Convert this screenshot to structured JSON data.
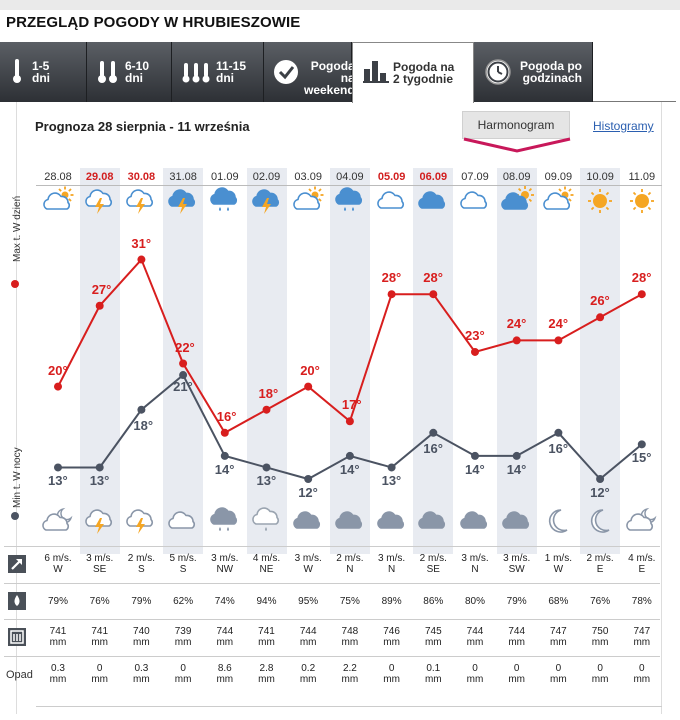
{
  "page_title": "PRZEGLĄD POGODY W HRUBIESZOWIE",
  "tabs": [
    {
      "line1": "1-5",
      "line2": "dni",
      "icon": "thermometer-icon"
    },
    {
      "line1": "6-10",
      "line2": "dni",
      "icon": "thermometer-pair-icon"
    },
    {
      "line1": "11-15",
      "line2": "dni",
      "icon": "thermometer-triple-icon"
    },
    {
      "line1": "Pogoda na",
      "line2": "weekend",
      "icon": "checkmark-icon"
    },
    {
      "line1": "Pogoda na",
      "line2": "2 tygodnie",
      "icon": "bar-chart-icon",
      "active": true
    },
    {
      "line1": "Pogoda po",
      "line2": "godzinach",
      "icon": "clock-icon"
    }
  ],
  "subtitle": "Prognoza 28 sierpnia - 11 września",
  "harmonogram_label": "Harmonogram",
  "histogramy_label": "Histogramy",
  "axis_max_label": "Max t. W dzień",
  "axis_min_label": "Min t. W nocy",
  "colors": {
    "max": "#d81e1e",
    "min": "#4b5362",
    "weekend": "#d21f1f",
    "accent": "#c8185a",
    "strip": "#e8ebf1"
  },
  "days": [
    {
      "date": "28.08",
      "weekend": false,
      "day_icon": "partly-cloudy-outline",
      "night_icon": "moon-cloud-outline",
      "max": 20,
      "min": 13,
      "wind": "6 m/s.",
      "dir": "W",
      "hum": "79%",
      "press": "741",
      "precip": "0.3"
    },
    {
      "date": "29.08",
      "weekend": true,
      "day_icon": "thunder-cloud-outline",
      "night_icon": "thunder-cloud-outline",
      "max": 27,
      "min": 13,
      "wind": "3 m/s.",
      "dir": "SE",
      "hum": "76%",
      "press": "741",
      "precip": "0"
    },
    {
      "date": "30.08",
      "weekend": true,
      "day_icon": "thunder-cloud-outline",
      "night_icon": "thunder-cloud-outline",
      "max": 31,
      "min": 18,
      "wind": "2 m/s.",
      "dir": "S",
      "hum": "79%",
      "press": "740",
      "precip": "0.3"
    },
    {
      "date": "31.08",
      "weekend": false,
      "day_icon": "thunder-cloud-filled",
      "night_icon": "cloud-outline",
      "max": 22,
      "min": 21,
      "wind": "5 m/s.",
      "dir": "S",
      "hum": "62%",
      "press": "739",
      "precip": "0"
    },
    {
      "date": "01.09",
      "weekend": false,
      "day_icon": "rain-cloud-filled",
      "night_icon": "rain-cloud-filled",
      "max": 16,
      "min": 14,
      "wind": "3 m/s.",
      "dir": "NW",
      "hum": "74%",
      "press": "744",
      "precip": "8.6"
    },
    {
      "date": "02.09",
      "weekend": false,
      "day_icon": "thunder-cloud-filled",
      "night_icon": "rain-cloud-outline",
      "max": 18,
      "min": 13,
      "wind": "4 m/s.",
      "dir": "NE",
      "hum": "94%",
      "press": "741",
      "precip": "2.8"
    },
    {
      "date": "03.09",
      "weekend": false,
      "day_icon": "partly-cloudy-outline",
      "night_icon": "cloud-filled",
      "max": 20,
      "min": 12,
      "wind": "3 m/s.",
      "dir": "W",
      "hum": "95%",
      "press": "744",
      "precip": "0.2"
    },
    {
      "date": "04.09",
      "weekend": false,
      "day_icon": "rain-cloud-filled",
      "night_icon": "cloud-filled",
      "max": 17,
      "min": 14,
      "wind": "2 m/s.",
      "dir": "N",
      "hum": "75%",
      "press": "748",
      "precip": "2.2"
    },
    {
      "date": "05.09",
      "weekend": true,
      "day_icon": "cloud-outline",
      "night_icon": "cloud-filled",
      "max": 28,
      "min": 13,
      "wind": "3 m/s.",
      "dir": "N",
      "hum": "89%",
      "press": "746",
      "precip": "0"
    },
    {
      "date": "06.09",
      "weekend": true,
      "day_icon": "cloud-filled",
      "night_icon": "cloud-filled",
      "max": 28,
      "min": 16,
      "wind": "2 m/s.",
      "dir": "SE",
      "hum": "86%",
      "press": "745",
      "precip": "0.1"
    },
    {
      "date": "07.09",
      "weekend": false,
      "day_icon": "cloud-outline",
      "night_icon": "cloud-filled",
      "max": 23,
      "min": 14,
      "wind": "3 m/s.",
      "dir": "N",
      "hum": "80%",
      "press": "744",
      "precip": "0"
    },
    {
      "date": "08.09",
      "weekend": false,
      "day_icon": "sun-cloud-filled",
      "night_icon": "cloud-filled",
      "max": 24,
      "min": 14,
      "wind": "3 m/s.",
      "dir": "SW",
      "hum": "79%",
      "press": "744",
      "precip": "0"
    },
    {
      "date": "09.09",
      "weekend": false,
      "day_icon": "partly-cloudy-outline",
      "night_icon": "crescent-moon",
      "max": 24,
      "min": 16,
      "wind": "1 m/s.",
      "dir": "W",
      "hum": "68%",
      "press": "747",
      "precip": "0"
    },
    {
      "date": "10.09",
      "weekend": false,
      "day_icon": "sun",
      "night_icon": "crescent-moon",
      "max": 26,
      "min": 12,
      "wind": "2 m/s.",
      "dir": "E",
      "hum": "76%",
      "press": "750",
      "precip": "0"
    },
    {
      "date": "11.09",
      "weekend": false,
      "day_icon": "sun",
      "night_icon": "moon-cloud-outline",
      "max": 28,
      "min": 15,
      "wind": "4 m/s.",
      "dir": "E",
      "hum": "78%",
      "press": "747",
      "precip": "0"
    }
  ],
  "precip_label": "Opad",
  "precip_unit": "mm",
  "chart_data": {
    "type": "line",
    "categories": [
      "28.08",
      "29.08",
      "30.08",
      "31.08",
      "01.09",
      "02.09",
      "03.09",
      "04.09",
      "05.09",
      "06.09",
      "07.09",
      "08.09",
      "09.09",
      "10.09",
      "11.09"
    ],
    "series": [
      {
        "name": "Max t. W dzień",
        "values": [
          20,
          27,
          31,
          22,
          16,
          18,
          20,
          17,
          28,
          28,
          23,
          24,
          24,
          26,
          28
        ]
      },
      {
        "name": "Min t. W nocy",
        "values": [
          13,
          13,
          18,
          21,
          14,
          13,
          12,
          14,
          13,
          16,
          14,
          14,
          16,
          12,
          15
        ]
      }
    ],
    "grid": false,
    "legend": "left-vertical"
  }
}
